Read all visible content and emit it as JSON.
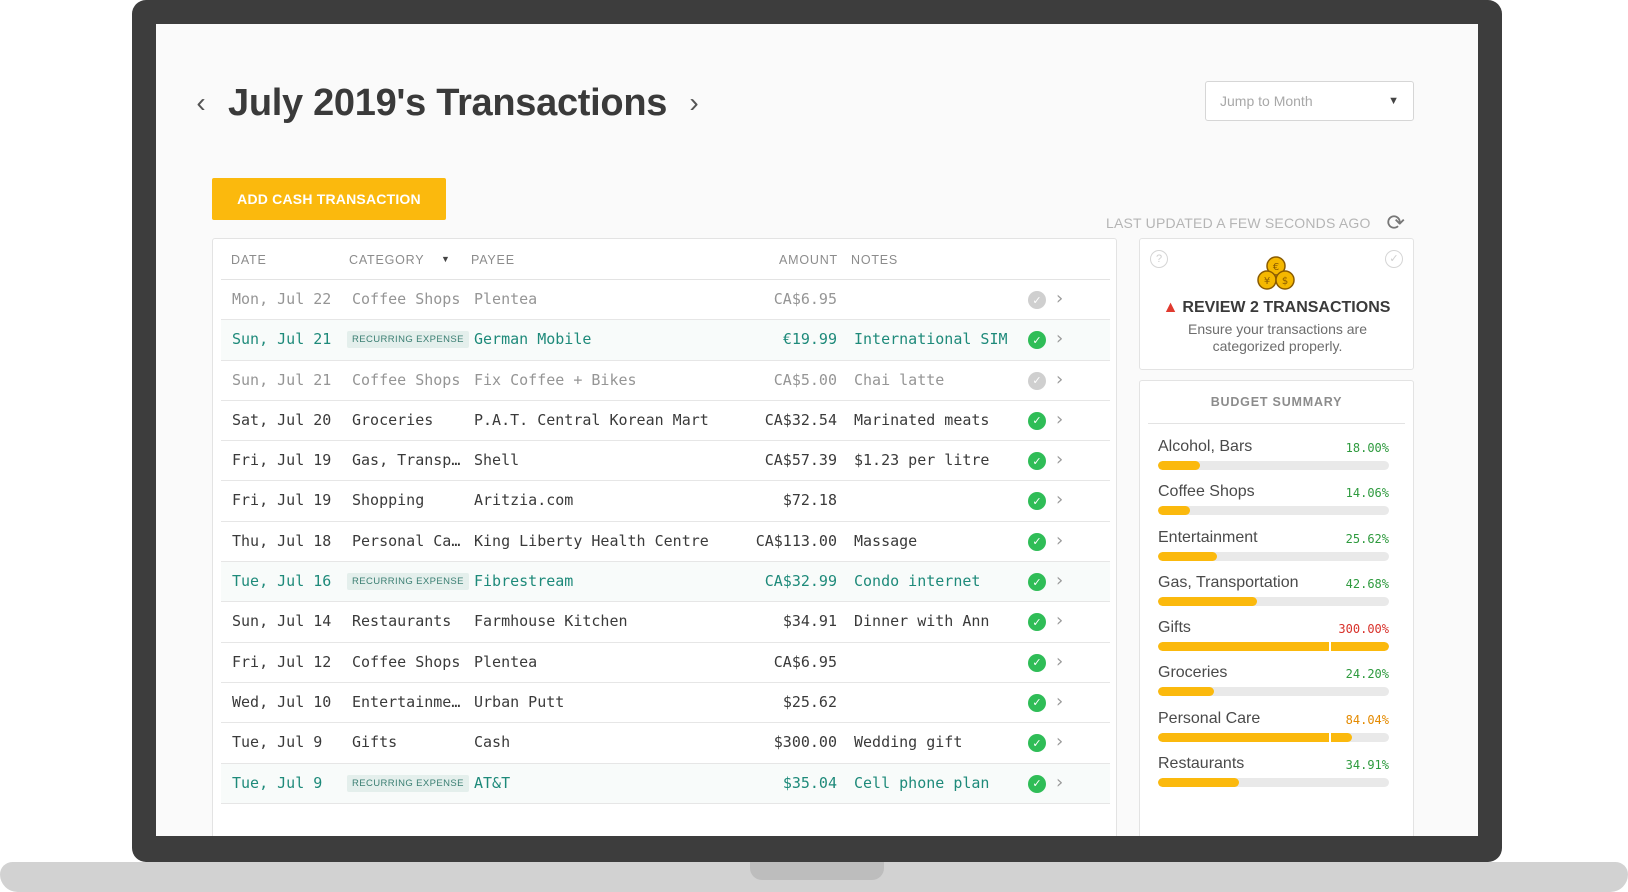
{
  "header": {
    "title": "July 2019's Transactions",
    "prev_icon": "chevron-left-icon",
    "next_icon": "chevron-right-icon"
  },
  "jump_to_month": {
    "placeholder": "Jump to Month",
    "icon": "caret-down-icon"
  },
  "toolbar": {
    "add_button_label": "ADD CASH TRANSACTION",
    "last_updated": "LAST UPDATED A FEW SECONDS AGO",
    "refresh_icon": "refresh-icon"
  },
  "table": {
    "columns": {
      "date": "DATE",
      "category": "CATEGORY",
      "payee": "PAYEE",
      "amount": "AMOUNT",
      "notes": "NOTES"
    },
    "rows": [
      {
        "date": "Mon, Jul 22",
        "category": "Coffee Shops",
        "payee": "Plentea",
        "amount": "CA$6.95",
        "notes": "",
        "state": "pending"
      },
      {
        "date": "Sun, Jul 21",
        "category": "RECURRING EXPENSE",
        "payee": "German Mobile",
        "amount": "€19.99",
        "notes": "International SIM",
        "state": "recurring"
      },
      {
        "date": "Sun, Jul 21",
        "category": "Coffee Shops",
        "payee": "Fix Coffee + Bikes",
        "amount": "CA$5.00",
        "notes": "Chai latte",
        "state": "pending"
      },
      {
        "date": "Sat, Jul 20",
        "category": "Groceries",
        "payee": "P.A.T. Central Korean Mart",
        "amount": "CA$32.54",
        "notes": "Marinated meats",
        "state": "ok"
      },
      {
        "date": "Fri, Jul 19",
        "category": "Gas, Transp…",
        "payee": "Shell",
        "amount": "CA$57.39",
        "notes": "$1.23 per litre",
        "state": "ok"
      },
      {
        "date": "Fri, Jul 19",
        "category": "Shopping",
        "payee": "Aritzia.com",
        "amount": "$72.18",
        "notes": "",
        "state": "ok"
      },
      {
        "date": "Thu, Jul 18",
        "category": "Personal Ca…",
        "payee": "King Liberty Health Centre",
        "amount": "CA$113.00",
        "notes": "Massage",
        "state": "ok"
      },
      {
        "date": "Tue, Jul 16",
        "category": "RECURRING EXPENSE",
        "payee": "Fibrestream",
        "amount": "CA$32.99",
        "notes": "Condo internet",
        "state": "recurring"
      },
      {
        "date": "Sun, Jul 14",
        "category": "Restaurants",
        "payee": "Farmhouse Kitchen",
        "amount": "$34.91",
        "notes": "Dinner with Ann",
        "state": "ok"
      },
      {
        "date": "Fri, Jul 12",
        "category": "Coffee Shops",
        "payee": "Plentea",
        "amount": "CA$6.95",
        "notes": "",
        "state": "ok"
      },
      {
        "date": "Wed, Jul 10",
        "category": "Entertainme…",
        "payee": "Urban Putt",
        "amount": "$25.62",
        "notes": "",
        "state": "ok"
      },
      {
        "date": "Tue, Jul 9",
        "category": "Gifts",
        "payee": "Cash",
        "amount": "$300.00",
        "notes": "Wedding gift",
        "state": "ok"
      },
      {
        "date": "Tue, Jul 9",
        "category": "RECURRING EXPENSE",
        "payee": "AT&T",
        "amount": "$35.04",
        "notes": "Cell phone plan",
        "state": "recurring"
      }
    ]
  },
  "review": {
    "title": "REVIEW 2 TRANSACTIONS",
    "subtitle": "Ensure your transactions are categorized properly.",
    "help_icon": "question-circle-icon",
    "check_icon": "check-circle-outline-icon",
    "coins_icon": "coins-icon"
  },
  "budget": {
    "title": "BUDGET SUMMARY",
    "items": [
      {
        "name": "Alcohol, Bars",
        "percent_label": "18.00%",
        "percent": 18.0,
        "status": "green"
      },
      {
        "name": "Coffee Shops",
        "percent_label": "14.06%",
        "percent": 14.06,
        "status": "green"
      },
      {
        "name": "Entertainment",
        "percent_label": "25.62%",
        "percent": 25.62,
        "status": "green"
      },
      {
        "name": "Gas, Transportation",
        "percent_label": "42.68%",
        "percent": 42.68,
        "status": "green"
      },
      {
        "name": "Gifts",
        "percent_label": "300.00%",
        "percent": 300.0,
        "status": "red"
      },
      {
        "name": "Groceries",
        "percent_label": "24.20%",
        "percent": 24.2,
        "status": "green"
      },
      {
        "name": "Personal Care",
        "percent_label": "84.04%",
        "percent": 84.04,
        "status": "orange"
      },
      {
        "name": "Restaurants",
        "percent_label": "34.91%",
        "percent": 34.91,
        "status": "green"
      }
    ]
  },
  "colors": {
    "accent": "#fbb90d",
    "recurring": "#1e8a7a",
    "ok": "#2fbd57",
    "over": "#d8312a",
    "warning": "#e48a00"
  }
}
